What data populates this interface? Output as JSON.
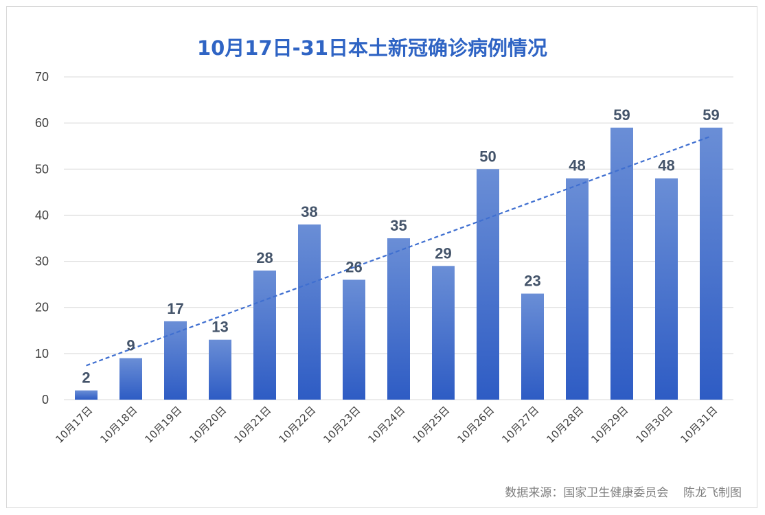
{
  "chart_data": {
    "type": "bar",
    "title": "10月17日-31日本土新冠确诊病例情况",
    "categories": [
      "10月17日",
      "10月18日",
      "10月19日",
      "10月20日",
      "10月21日",
      "10月22日",
      "10月23日",
      "10月24日",
      "10月25日",
      "10月26日",
      "10月27日",
      "10月28日",
      "10月29日",
      "10月30日",
      "10月31日"
    ],
    "values": [
      2,
      9,
      17,
      13,
      28,
      38,
      26,
      35,
      29,
      50,
      23,
      48,
      59,
      48,
      59
    ],
    "ylim": [
      0,
      70
    ],
    "yticks": [
      0,
      10,
      20,
      30,
      40,
      50,
      60,
      70
    ],
    "xlabel": "",
    "ylabel": "",
    "grid": true,
    "legend": "none",
    "trendline": "linear",
    "data_labels": true,
    "colors": {
      "bar_top": "#6a8ed6",
      "bar_bottom": "#2e5cc4",
      "title": "#2f64c4",
      "trendline": "#3f6fd0",
      "data_label": "#44546a"
    }
  },
  "source_note": "数据来源：国家卫生健康委员会    陈龙飞制图"
}
